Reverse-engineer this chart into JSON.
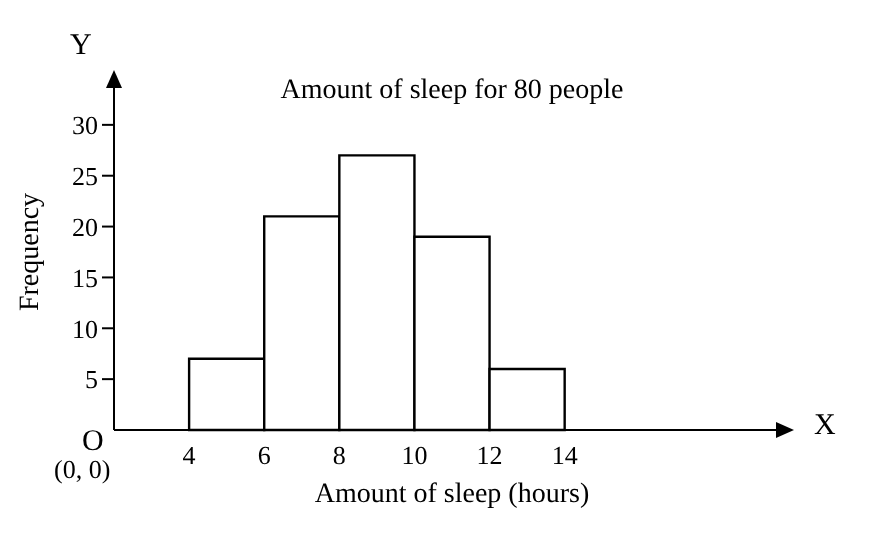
{
  "chart_data": {
    "type": "histogram",
    "title": "Amount of sleep for 80 people",
    "xlabel": "Amount of sleep (hours)",
    "ylabel": "Frequency",
    "bins": [
      4,
      6,
      8,
      10,
      12,
      14
    ],
    "values": [
      7,
      21,
      27,
      19,
      6
    ],
    "color": "#ffffff",
    "xlim": [
      2,
      20
    ],
    "xticks": [
      4,
      6,
      8,
      10,
      12,
      14
    ],
    "ylim": [
      0,
      35
    ],
    "yticks": [
      5,
      10,
      15,
      20,
      25,
      30
    ],
    "annotations": [
      "Y",
      "X",
      "O",
      "(0, 0)"
    ]
  }
}
